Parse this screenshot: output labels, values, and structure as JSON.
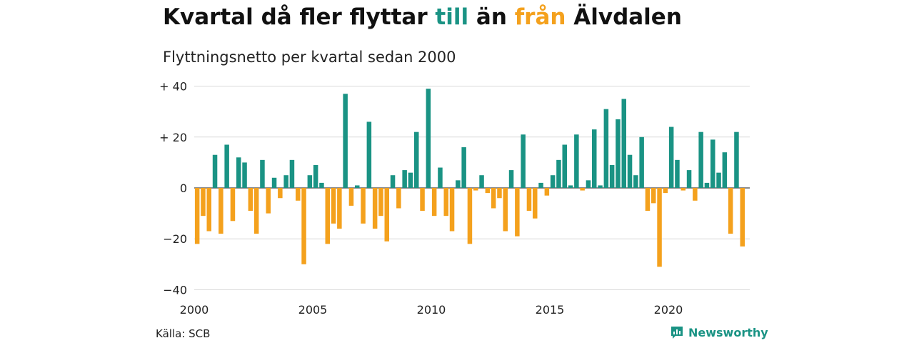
{
  "title": {
    "part1": "Kvartal då fler flyttar ",
    "in_word": "till",
    "part2": " än ",
    "out_word": "från",
    "part3": " Älvdalen"
  },
  "subtitle": "Flyttningsnetto per kvartal sedan 2000",
  "source": "Källa: SCB",
  "brand": "Newsworthy",
  "colors": {
    "positive": "#1a9384",
    "negative": "#f4a11d",
    "grid": "#d9d9d9",
    "axis": "#222222"
  },
  "chart_data": {
    "type": "bar",
    "title": "Kvartal då fler flyttar till än från Älvdalen",
    "subtitle": "Flyttningsnetto per kvartal sedan 2000",
    "xlabel": "",
    "ylabel": "",
    "x_start": "2000 Q1",
    "x_ticks": [
      2000,
      2005,
      2010,
      2015,
      2020
    ],
    "x_tick_labels": [
      "2000",
      "2005",
      "2010",
      "2015",
      "2020"
    ],
    "y_ticks": [
      40,
      20,
      0,
      -20,
      -40
    ],
    "y_tick_labels": [
      "+ 40",
      "+ 20",
      "0",
      "−20",
      "−40"
    ],
    "ylim": [
      -40,
      40
    ],
    "grid": true,
    "values": [
      -22,
      -11,
      -17,
      13,
      -18,
      17,
      -13,
      12,
      10,
      -9,
      -18,
      11,
      -10,
      4,
      -4,
      5,
      11,
      -5,
      -30,
      5,
      9,
      2,
      -22,
      -14,
      -16,
      37,
      -7,
      1,
      -14,
      26,
      -16,
      -11,
      -21,
      5,
      -8,
      7,
      6,
      22,
      -9,
      39,
      -11,
      8,
      -11,
      -17,
      3,
      16,
      -22,
      -1,
      5,
      -2,
      -8,
      -4,
      -17,
      7,
      -19,
      21,
      -9,
      -12,
      2,
      -3,
      5,
      11,
      17,
      1,
      21,
      -1,
      3,
      23,
      1,
      31,
      9,
      27,
      35,
      13,
      5,
      20,
      -9,
      -6,
      -31,
      -2,
      24,
      11,
      -1,
      7,
      -5,
      22,
      2,
      19,
      6,
      14,
      -18,
      22,
      -23
    ]
  }
}
